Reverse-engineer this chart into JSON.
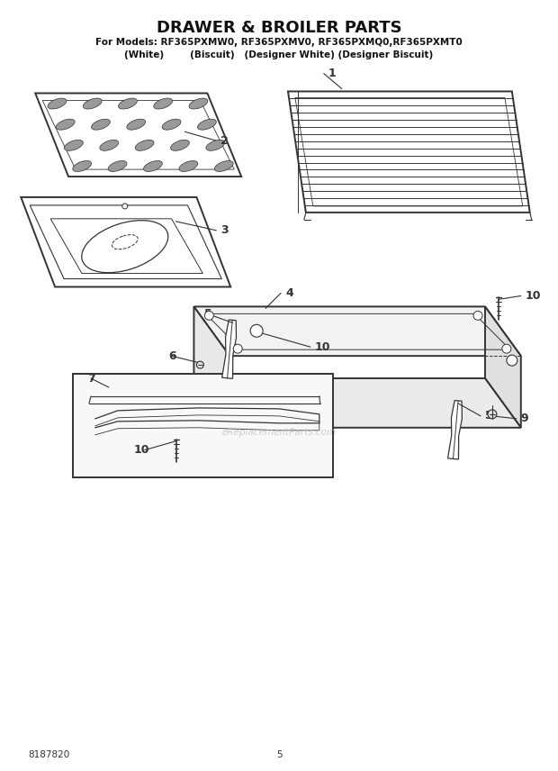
{
  "title": "DRAWER & BROILER PARTS",
  "subtitle1": "For Models: RF365PXMW0, RF365PXMV0, RF365PXMQ0,RF365PXMT0",
  "subtitle2": "(White)        (Biscuit)   (Designer White) (Designer Biscuit)",
  "doc_number": "8187820",
  "page_number": "5",
  "bg_color": "#ffffff",
  "line_color": "#333333",
  "watermark": "eReplacementParts.com",
  "figsize": [
    6.2,
    8.56
  ],
  "dpi": 100
}
